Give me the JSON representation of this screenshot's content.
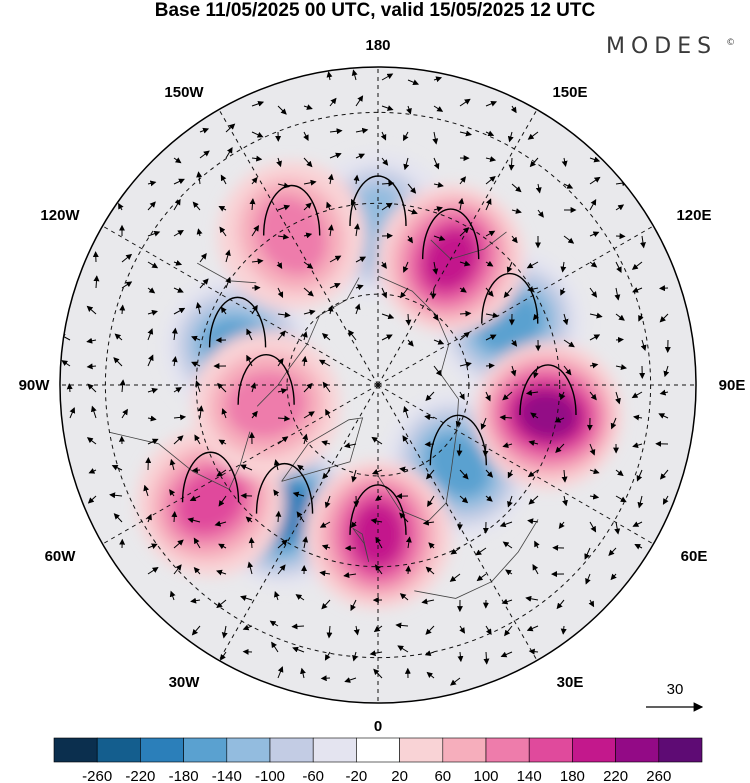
{
  "title": "Base 11/05/2025 00 UTC, valid 15/05/2025 12 UTC",
  "logo": "MODES",
  "logo_mark": "©",
  "longitude_labels": {
    "top": "180",
    "bottom": "0",
    "left": "90W",
    "right": "90E",
    "upper_left_1": "150W",
    "upper_left_2": "120W",
    "lower_left_1": "60W",
    "lower_left_2": "30W",
    "upper_right_1": "150E",
    "upper_right_2": "120E",
    "lower_right_1": "60E",
    "lower_right_2": "30E"
  },
  "vector_reference": "30",
  "colorbar": {
    "tick_labels": [
      "-260",
      "-220",
      "-180",
      "-140",
      "-100",
      "-60",
      "-20",
      "20",
      "60",
      "100",
      "140",
      "180",
      "220",
      "260"
    ],
    "colors": [
      "#0b2f4e",
      "#145e8e",
      "#2b7fba",
      "#5aa1d0",
      "#93bcdf",
      "#c3cce4",
      "#e4e4f0",
      "#ffffff",
      "#f9d3d6",
      "#f6aebc",
      "#ee7cab",
      "#e04a9c",
      "#c3188c",
      "#930a86",
      "#5e0b74"
    ]
  },
  "anomaly_centers": [
    {
      "sign": "negative",
      "value": -190,
      "lon": -36,
      "lat": 55
    },
    {
      "sign": "negative",
      "value": -150,
      "lon": -105,
      "lat": 58
    },
    {
      "sign": "negative",
      "value": -140,
      "lon": 45,
      "lat": 65
    },
    {
      "sign": "negative",
      "value": -140,
      "lon": 115,
      "lat": 58
    },
    {
      "sign": "negative",
      "value": -110,
      "lon": 180,
      "lat": 55
    },
    {
      "sign": "positive",
      "value": 190,
      "lon": 0,
      "lat": 57
    },
    {
      "sign": "positive",
      "value": 210,
      "lon": 150,
      "lat": 58
    },
    {
      "sign": "positive",
      "value": 220,
      "lon": 80,
      "lat": 52
    },
    {
      "sign": "positive",
      "value": 150,
      "lon": -55,
      "lat": 45
    },
    {
      "sign": "positive",
      "value": 120,
      "lon": -80,
      "lat": 65
    },
    {
      "sign": "positive",
      "value": 100,
      "lon": -150,
      "lat": 52
    }
  ]
}
